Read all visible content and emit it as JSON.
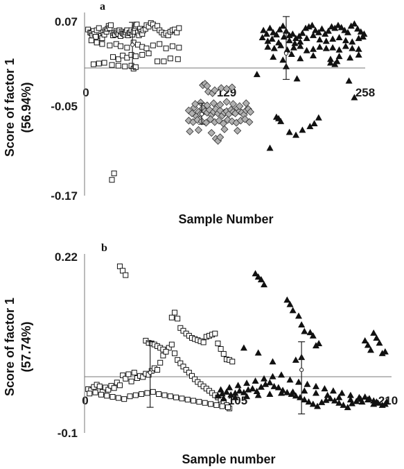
{
  "chart_data": [
    {
      "type": "scatter",
      "panel_label": "a",
      "xlabel": "Sample Number",
      "ylabel_line1": "Score of factor 1",
      "ylabel_line2": "(56.94%)",
      "xticks": [
        0,
        129,
        258
      ],
      "yticks": [
        0.07,
        -0.05,
        -0.17
      ],
      "xlim": [
        0,
        258
      ],
      "ylim": [
        -0.17,
        0.07
      ],
      "series": [
        {
          "marker": "open-square",
          "color": "#ffffff",
          "x": [
            2,
            4,
            5,
            6,
            7,
            8,
            9,
            10,
            12,
            14,
            15,
            16,
            17,
            18,
            19,
            20,
            21,
            22,
            23,
            25,
            26,
            27,
            28,
            29,
            30,
            31,
            32,
            33,
            34,
            35,
            36,
            37,
            38,
            39,
            40,
            41,
            42,
            43,
            44,
            45,
            46,
            47,
            48,
            49,
            50,
            51,
            52,
            53,
            55,
            56,
            58,
            60,
            62,
            64,
            66,
            68,
            70,
            72,
            74,
            76,
            78,
            80,
            82,
            84,
            86,
            5,
            10,
            15,
            22,
            28,
            32,
            38,
            44,
            48,
            52,
            56,
            62,
            68,
            74,
            80,
            86,
            25,
            30,
            34,
            38,
            42,
            46,
            52,
            58,
            66,
            72,
            78,
            85,
            7,
            12,
            17,
            24,
            30,
            36,
            42,
            44,
            46,
            26,
            24
          ],
          "y": [
            0.056,
            0.052,
            0.051,
            0.048,
            0.054,
            0.05,
            0.046,
            0.055,
            0.058,
            0.047,
            0.044,
            0.052,
            0.049,
            0.055,
            0.053,
            0.057,
            0.061,
            0.058,
            0.062,
            0.048,
            0.051,
            0.049,
            0.054,
            0.052,
            0.05,
            0.055,
            0.047,
            0.053,
            0.051,
            0.05,
            0.049,
            0.052,
            0.055,
            0.048,
            0.051,
            0.052,
            0.055,
            0.049,
            0.053,
            0.058,
            0.061,
            0.063,
            0.052,
            0.048,
            0.057,
            0.053,
            0.05,
            0.055,
            0.057,
            0.062,
            0.06,
            0.065,
            0.063,
            0.058,
            0.061,
            0.055,
            0.052,
            0.049,
            0.051,
            0.048,
            0.053,
            0.055,
            0.056,
            0.052,
            0.058,
            0.041,
            0.038,
            0.036,
            0.034,
            0.036,
            0.033,
            0.031,
            0.038,
            0.035,
            0.032,
            0.03,
            0.034,
            0.036,
            0.03,
            0.033,
            0.031,
            0.018,
            0.015,
            0.02,
            0.017,
            0.021,
            0.019,
            0.021,
            0.023,
            0.012,
            0.012,
            0.016,
            0.015,
            0.008,
            0.009,
            0.01,
            0.007,
            0.006,
            0.005,
            0.006,
            0.002,
            0.004,
            -0.143,
            -0.152
          ]
        },
        {
          "marker": "filled-diamond",
          "color": "#b0b0b0",
          "x": [
            95,
            98,
            100,
            102,
            104,
            106,
            108,
            110,
            112,
            114,
            116,
            118,
            120,
            122,
            124,
            126,
            128,
            130,
            132,
            134,
            136,
            138,
            140,
            142,
            144,
            146,
            148,
            150,
            152,
            95,
            99,
            103,
            107,
            111,
            115,
            119,
            123,
            127,
            131,
            135,
            139,
            143,
            147,
            151,
            101,
            106,
            112,
            118,
            124,
            130,
            136,
            142,
            148,
            96,
            104,
            116,
            128,
            140,
            120,
            122,
            124,
            113,
            117,
            119,
            108,
            110,
            112,
            125,
            130,
            135
          ],
          "y": [
            -0.056,
            -0.06,
            -0.052,
            -0.064,
            -0.058,
            -0.061,
            -0.053,
            -0.057,
            -0.059,
            -0.055,
            -0.062,
            -0.058,
            -0.054,
            -0.06,
            -0.056,
            -0.063,
            -0.059,
            -0.057,
            -0.061,
            -0.055,
            -0.058,
            -0.06,
            -0.053,
            -0.057,
            -0.059,
            -0.062,
            -0.056,
            -0.054,
            -0.058,
            -0.07,
            -0.072,
            -0.069,
            -0.071,
            -0.073,
            -0.068,
            -0.072,
            -0.07,
            -0.074,
            -0.069,
            -0.071,
            -0.073,
            -0.07,
            -0.068,
            -0.072,
            -0.047,
            -0.045,
            -0.049,
            -0.046,
            -0.048,
            -0.044,
            -0.047,
            -0.05,
            -0.046,
            -0.085,
            -0.083,
            -0.087,
            -0.082,
            -0.084,
            -0.095,
            -0.098,
            -0.093,
            -0.03,
            -0.032,
            -0.028,
            -0.021,
            -0.019,
            -0.022,
            -0.025,
            -0.026,
            -0.024
          ]
        },
        {
          "marker": "filled-triangle",
          "color": "#111111",
          "x": [
            164,
            167,
            170,
            173,
            176,
            179,
            182,
            185,
            188,
            191,
            194,
            197,
            200,
            203,
            206,
            209,
            212,
            215,
            218,
            221,
            224,
            227,
            230,
            233,
            236,
            239,
            242,
            245,
            248,
            251,
            254,
            257,
            163,
            168,
            172,
            178,
            183,
            188,
            193,
            198,
            204,
            210,
            216,
            222,
            228,
            234,
            240,
            246,
            252,
            256,
            168,
            174,
            180,
            186,
            192,
            198,
            204,
            210,
            216,
            222,
            228,
            234,
            240,
            246,
            252,
            173,
            182,
            190,
            198,
            210,
            226,
            234,
            244,
            252,
            158,
            185,
            195,
            226,
            230,
            232,
            243,
            248,
            176,
            178,
            180,
            170,
            188,
            194,
            200,
            207,
            211,
            215
          ],
          "y": [
            0.055,
            0.05,
            0.058,
            0.052,
            0.049,
            0.056,
            0.061,
            0.054,
            0.048,
            0.05,
            0.044,
            0.047,
            0.051,
            0.058,
            0.06,
            0.062,
            0.055,
            0.052,
            0.057,
            0.05,
            0.054,
            0.06,
            0.058,
            0.062,
            0.059,
            0.055,
            0.052,
            0.061,
            0.064,
            0.057,
            0.053,
            0.05,
            0.045,
            0.04,
            0.043,
            0.038,
            0.046,
            0.041,
            0.037,
            0.039,
            0.044,
            0.048,
            0.042,
            0.04,
            0.043,
            0.045,
            0.041,
            0.039,
            0.044,
            0.046,
            0.032,
            0.03,
            0.034,
            0.028,
            0.031,
            0.033,
            0.027,
            0.029,
            0.032,
            0.03,
            0.031,
            0.028,
            0.033,
            0.03,
            0.029,
            0.018,
            0.014,
            0.022,
            0.016,
            0.02,
            0.015,
            0.019,
            0.017,
            0.021,
            -0.006,
            0.005,
            -0.012,
            0.01,
            0.008,
            0.012,
            -0.015,
            -0.038,
            -0.065,
            -0.067,
            -0.071,
            -0.108,
            -0.086,
            -0.09,
            -0.083,
            -0.078,
            -0.074,
            -0.066
          ]
        }
      ],
      "error_bars": [
        {
          "x": 43,
          "mean": 0.035,
          "low": 0.002,
          "high": 0.066
        },
        {
          "x": 107,
          "mean": -0.061,
          "low": -0.075,
          "high": -0.046
        },
        {
          "x": 185,
          "mean": 0.023,
          "low": -0.013,
          "high": 0.074
        }
      ]
    },
    {
      "type": "scatter",
      "panel_label": "b",
      "xlabel": "Sample number",
      "ylabel_line1": "Score of factor 1",
      "ylabel_line2": "(57.74%)",
      "xticks": [
        0,
        105,
        210
      ],
      "xtick_labels": [
        "0",
        "105",
        "210"
      ],
      "yticks": [
        0.22,
        -0.1
      ],
      "xlim": [
        0,
        210
      ],
      "ylim": [
        -0.1,
        0.22
      ],
      "series": [
        {
          "marker": "open-square",
          "color": "#ffffff",
          "x": [
            2,
            4,
            6,
            8,
            10,
            12,
            14,
            16,
            18,
            20,
            22,
            24,
            26,
            28,
            30,
            32,
            34,
            36,
            38,
            40,
            42,
            44,
            46,
            48,
            50,
            52,
            54,
            56,
            58,
            60,
            62,
            64,
            66,
            68,
            70,
            72,
            74,
            76,
            78,
            80,
            82,
            84,
            86,
            88,
            90,
            92,
            94,
            96,
            98,
            100,
            3,
            7,
            11,
            15,
            19,
            23,
            27,
            31,
            35,
            39,
            43,
            47,
            51,
            55,
            59,
            63,
            67,
            71,
            75,
            79,
            83,
            87,
            91,
            95,
            99,
            24,
            26,
            28,
            66,
            68,
            70,
            72,
            74,
            76,
            78,
            80,
            82,
            84,
            86,
            88,
            90,
            92,
            94,
            96,
            98,
            100,
            102,
            60,
            62,
            64,
            42,
            44,
            46,
            48,
            50,
            52,
            54,
            56
          ],
          "y": [
            -0.023,
            -0.025,
            -0.019,
            -0.015,
            -0.018,
            -0.028,
            -0.02,
            -0.024,
            -0.017,
            -0.021,
            -0.011,
            -0.016,
            0.002,
            -0.004,
            0.004,
            -0.009,
            0.007,
            -0.003,
            0.001,
            -0.001,
            0.005,
            0.003,
            0.01,
            0.015,
            0.012,
            0.025,
            0.038,
            0.048,
            0.052,
            0.058,
            0.042,
            0.03,
            0.024,
            0.018,
            0.012,
            0.007,
            0.001,
            -0.005,
            -0.01,
            -0.014,
            -0.018,
            -0.022,
            -0.026,
            -0.03,
            -0.034,
            -0.038,
            -0.042,
            -0.046,
            -0.052,
            -0.058,
            -0.031,
            -0.029,
            -0.033,
            -0.035,
            -0.037,
            -0.039,
            -0.041,
            -0.036,
            -0.034,
            -0.032,
            -0.03,
            -0.028,
            -0.032,
            -0.034,
            -0.036,
            -0.038,
            -0.04,
            -0.042,
            -0.044,
            -0.046,
            -0.048,
            -0.05,
            -0.052,
            -0.054,
            -0.056,
            0.2,
            0.192,
            0.184,
            0.088,
            0.083,
            0.078,
            0.074,
            0.07,
            0.068,
            0.066,
            0.064,
            0.062,
            0.072,
            0.074,
            0.076,
            0.078,
            0.06,
            0.05,
            0.041,
            0.031,
            0.03,
            0.027,
            0.107,
            0.116,
            0.105,
            0.065,
            0.061,
            0.06,
            0.058,
            0.055,
            0.052,
            0.049,
            0.045
          ]
        },
        {
          "marker": "filled-triangle",
          "color": "#111111",
          "x": [
            92,
            95,
            98,
            101,
            104,
            107,
            110,
            113,
            116,
            119,
            122,
            125,
            128,
            131,
            134,
            137,
            140,
            143,
            146,
            149,
            152,
            155,
            158,
            161,
            164,
            167,
            170,
            173,
            176,
            179,
            182,
            185,
            188,
            191,
            194,
            197,
            200,
            203,
            206,
            209,
            94,
            100,
            106,
            112,
            118,
            124,
            130,
            136,
            142,
            148,
            154,
            160,
            166,
            172,
            178,
            184,
            190,
            196,
            202,
            208,
            96,
            104,
            112,
            120,
            128,
            136,
            144,
            152,
            160,
            168,
            176,
            184,
            192,
            200,
            118,
            120,
            122,
            124,
            140,
            142,
            144,
            148,
            150,
            152,
            156,
            158,
            160,
            162,
            110,
            120,
            130,
            146,
            150,
            200,
            202,
            204,
            194,
            196,
            198,
            206,
            208
          ],
          "y": [
            -0.035,
            -0.031,
            -0.028,
            -0.033,
            -0.03,
            -0.026,
            -0.029,
            -0.024,
            -0.022,
            -0.027,
            -0.019,
            -0.014,
            -0.011,
            -0.018,
            -0.02,
            -0.025,
            -0.029,
            -0.032,
            -0.035,
            -0.038,
            -0.042,
            -0.046,
            -0.05,
            -0.054,
            -0.047,
            -0.043,
            -0.04,
            -0.044,
            -0.048,
            -0.052,
            -0.056,
            -0.049,
            -0.045,
            -0.041,
            -0.037,
            -0.04,
            -0.044,
            -0.048,
            -0.052,
            -0.046,
            -0.024,
            -0.02,
            -0.016,
            -0.012,
            -0.008,
            -0.004,
            0.0,
            0.003,
            -0.006,
            -0.01,
            -0.014,
            -0.018,
            -0.022,
            -0.026,
            -0.03,
            -0.034,
            -0.038,
            -0.042,
            -0.046,
            -0.05,
            -0.04,
            -0.038,
            -0.036,
            -0.034,
            -0.032,
            -0.03,
            -0.028,
            -0.026,
            -0.03,
            -0.034,
            -0.038,
            -0.042,
            -0.046,
            -0.05,
            0.187,
            0.181,
            0.176,
            0.167,
            0.139,
            0.131,
            0.12,
            0.11,
            0.094,
            0.082,
            0.08,
            0.074,
            0.056,
            0.06,
            0.052,
            0.043,
            0.027,
            0.03,
            0.035,
            0.079,
            0.07,
            0.061,
            0.065,
            0.057,
            0.048,
            0.042,
            0.045
          ]
        }
      ],
      "error_bars": [
        {
          "x": 45,
          "mean": 0.007,
          "low": -0.056,
          "high": 0.063
        },
        {
          "x": 150,
          "mean": 0.012,
          "low": -0.068,
          "high": 0.063
        }
      ]
    }
  ]
}
